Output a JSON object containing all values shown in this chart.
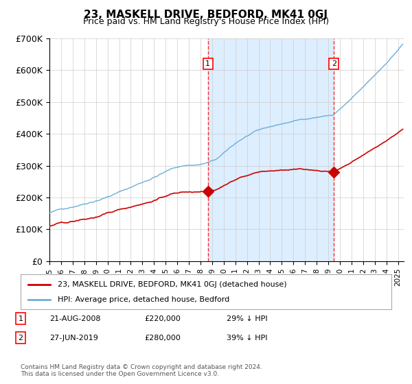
{
  "title": "23, MASKELL DRIVE, BEDFORD, MK41 0GJ",
  "subtitle": "Price paid vs. HM Land Registry's House Price Index (HPI)",
  "ylabel_ticks": [
    "£0",
    "£100K",
    "£200K",
    "£300K",
    "£400K",
    "£500K",
    "£600K",
    "£700K"
  ],
  "ylim": [
    0,
    700000
  ],
  "xlim_start": 1995.0,
  "xlim_end": 2025.5,
  "transaction1_date": 2008.64,
  "transaction1_value": 220000,
  "transaction1_label": "1",
  "transaction2_date": 2019.49,
  "transaction2_value": 280000,
  "transaction2_label": "2",
  "shaded_region_start": 2008.64,
  "shaded_region_end": 2019.49,
  "hpi_color": "#6baed6",
  "property_color": "#cc0000",
  "background_color": "#ffffff",
  "plot_bg_color": "#ffffff",
  "shaded_color": "#ddeeff",
  "grid_color": "#cccccc",
  "legend_label1": "23, MASKELL DRIVE, BEDFORD, MK41 0GJ (detached house)",
  "legend_label2": "HPI: Average price, detached house, Bedford",
  "footnote": "Contains HM Land Registry data © Crown copyright and database right 2024.\nThis data is licensed under the Open Government Licence v3.0.",
  "table_row1": [
    "1",
    "21-AUG-2008",
    "£220,000",
    "29% ↓ HPI"
  ],
  "table_row2": [
    "2",
    "27-JUN-2019",
    "£280,000",
    "39% ↓ HPI"
  ]
}
